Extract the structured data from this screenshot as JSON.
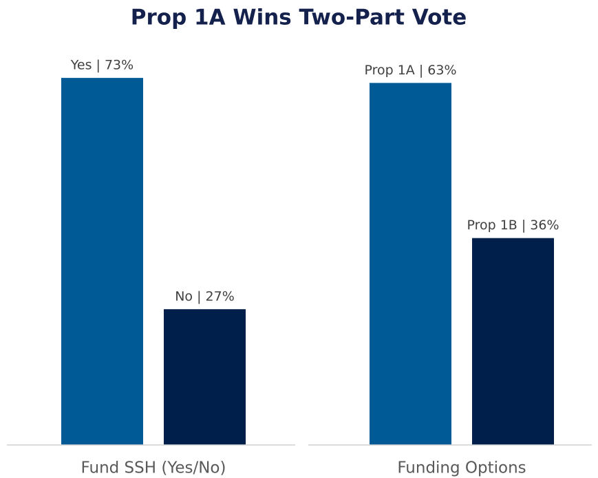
{
  "title": "Prop 1A Wins Two-Part Vote",
  "chart_data": [
    {
      "type": "bar",
      "xlabel": "Fund SSH (Yes/No)",
      "values": [
        73,
        27
      ],
      "value_labels": [
        "Yes | 73%",
        "No | 27%"
      ],
      "colors": [
        "#005a96",
        "#001f4a"
      ],
      "ylim": [
        0,
        80
      ]
    },
    {
      "type": "bar",
      "xlabel": "Funding Options",
      "values": [
        63,
        36
      ],
      "value_labels": [
        "Prop 1A | 63%",
        "Prop 1B | 36%"
      ],
      "colors": [
        "#005a96",
        "#001f4a"
      ],
      "ylim": [
        0,
        70
      ]
    }
  ]
}
